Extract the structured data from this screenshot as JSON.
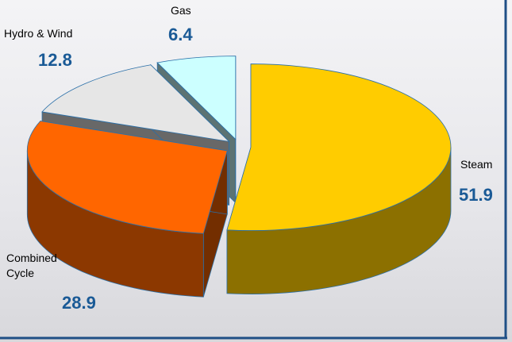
{
  "chart_data": {
    "type": "pie",
    "categories": [
      "Steam",
      "Combined Cycle",
      "Hydro & Wind",
      "Gas"
    ],
    "values": [
      51.9,
      28.9,
      12.8,
      6.4
    ],
    "colors": [
      "#ffcc00",
      "#ff6600",
      "#e6e6e6",
      "#ccffff"
    ]
  }
}
